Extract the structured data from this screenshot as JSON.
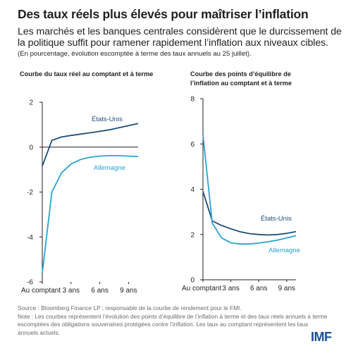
{
  "title": "Des taux réels plus élevés pour maîtriser l’inflation",
  "subtitle": "Les marchés et les banques centrales considèrent que le durcissement de la politique suffit pour ramener rapidement l’inflation aux niveaux cibles.",
  "note_top": "(En pourcentage, évolution escomptée à terme des taux annuels au 25 juillet).",
  "source": "Source : Bloomberg Finance LP ; responsable de la courbe de rendement pour le FMI.",
  "note": "Note : Les courbes représentent l’évolution des points d’équilibre de l’inflation à terme et des taux réels annuels à terme escomptées des obligations souveraines protégées contre l’inflation. Les taux au comptant représentent les taux annuels actuels.",
  "logo": "IMF",
  "colors": {
    "us": "#1f4e79",
    "germany": "#29a3d4",
    "axis": "#231f20"
  },
  "chart_data": [
    {
      "type": "line",
      "title": "Courbe du taux réel au comptant et à terme",
      "ylim": [
        -6,
        2
      ],
      "yticks": [
        2,
        0,
        -2,
        -4,
        -6
      ],
      "xlim": [
        0,
        10
      ],
      "xticks": [
        {
          "x": 0,
          "label": "Au comptant"
        },
        {
          "x": 3,
          "label": "3 ans"
        },
        {
          "x": 6,
          "label": "6 ans"
        },
        {
          "x": 9,
          "label": "9 ans"
        }
      ],
      "series": [
        {
          "name": "États-Unis",
          "color": "#1f4e79",
          "x": [
            0,
            1,
            2,
            3,
            4,
            5,
            6,
            7,
            8,
            9,
            10
          ],
          "values": [
            -0.85,
            0.3,
            0.45,
            0.52,
            0.58,
            0.64,
            0.7,
            0.77,
            0.86,
            0.96,
            1.05
          ]
        },
        {
          "name": "Allemagne",
          "color": "#29a3d4",
          "x": [
            0,
            1,
            2,
            3,
            4,
            5,
            6,
            7,
            8,
            9,
            10
          ],
          "values": [
            -5.6,
            -2.0,
            -1.15,
            -0.75,
            -0.55,
            -0.45,
            -0.4,
            -0.38,
            -0.38,
            -0.4,
            -0.42
          ]
        }
      ]
    },
    {
      "type": "line",
      "title": "Courbe des points d’équilibre de l’inflation au comptant et à terme",
      "ylim": [
        0,
        8
      ],
      "yticks": [
        8,
        6,
        4,
        2,
        0
      ],
      "xlim": [
        0,
        10
      ],
      "xticks": [
        {
          "x": 0,
          "label": "Au comptant"
        },
        {
          "x": 3,
          "label": "3 ans"
        },
        {
          "x": 6,
          "label": "6 ans"
        },
        {
          "x": 9,
          "label": "9 ans"
        }
      ],
      "series": [
        {
          "name": "États-Unis",
          "color": "#1f4e79",
          "x": [
            0,
            1,
            2,
            3,
            4,
            5,
            6,
            7,
            8,
            9,
            10
          ],
          "values": [
            3.9,
            2.6,
            2.4,
            2.25,
            2.12,
            2.04,
            2.0,
            1.98,
            2.0,
            2.05,
            2.13
          ]
        },
        {
          "name": "Allemagne",
          "color": "#29a3d4",
          "x": [
            0,
            1,
            2,
            3,
            4,
            5,
            6,
            7,
            8,
            9,
            10
          ],
          "values": [
            6.4,
            2.5,
            1.85,
            1.63,
            1.58,
            1.58,
            1.62,
            1.68,
            1.75,
            1.85,
            1.95
          ]
        }
      ]
    }
  ]
}
